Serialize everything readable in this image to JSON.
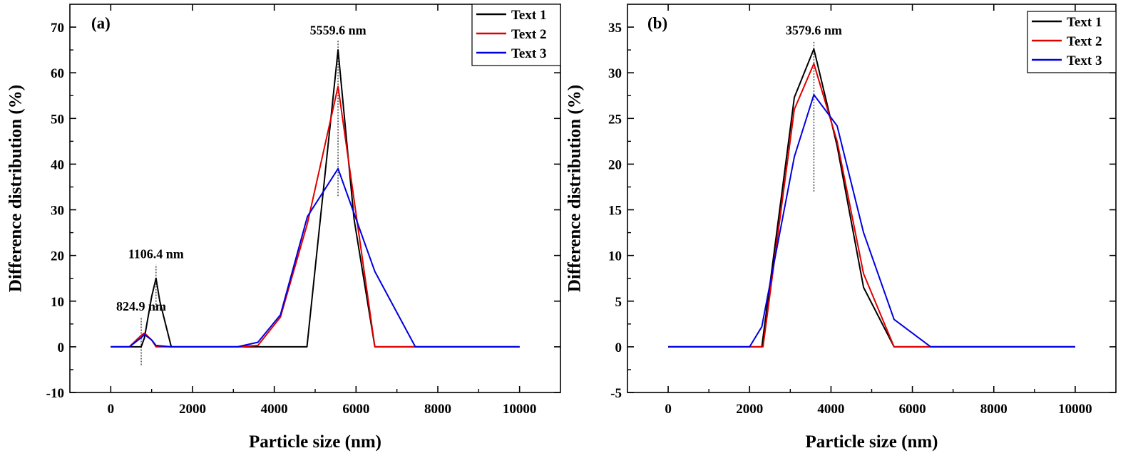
{
  "chart_data": [
    {
      "type": "line",
      "panel_label": "(a)",
      "xlabel": "Particle size (nm)",
      "ylabel": "Difference distribution (%)",
      "xlim": [
        -1000,
        11000
      ],
      "ylim": [
        -10,
        75
      ],
      "xticks": [
        0,
        2000,
        4000,
        6000,
        8000,
        10000
      ],
      "yticks": [
        -10,
        0,
        10,
        20,
        30,
        40,
        50,
        60,
        70
      ],
      "legend_position": "top-right",
      "colors": {
        "Text 1": "#000000",
        "Text 2": "#e00000",
        "Text 3": "#0000e0"
      },
      "series": [
        {
          "name": "Text 1",
          "color": "#000000",
          "x": [
            0,
            455,
            745,
            825,
            1000,
            1106.4,
            1200,
            1480,
            4800,
            5559.6,
            5950,
            6460,
            10000
          ],
          "y": [
            0,
            0,
            0,
            2.0,
            11.0,
            15.0,
            10.0,
            0,
            0,
            65.0,
            28.0,
            0,
            0
          ]
        },
        {
          "name": "Text 2",
          "color": "#e00000",
          "x": [
            0,
            455,
            745,
            824.9,
            1000,
            1106.4,
            1480,
            3100,
            3600,
            4150,
            4810,
            5559.6,
            6460,
            7450,
            10000
          ],
          "y": [
            0,
            0,
            2.5,
            3.0,
            1.5,
            0,
            0,
            0,
            0.3,
            6.5,
            27.0,
            57.0,
            0,
            0,
            0
          ]
        },
        {
          "name": "Text 3",
          "color": "#0000e0",
          "x": [
            0,
            455,
            745,
            824.9,
            1000,
            1106.4,
            1480,
            3100,
            3600,
            4150,
            4810,
            5559.6,
            6460,
            7450,
            10000
          ],
          "y": [
            0,
            0,
            2.0,
            2.7,
            1.5,
            0.3,
            0,
            0,
            1.0,
            7.0,
            28.5,
            39.0,
            16.5,
            0,
            0
          ]
        }
      ],
      "annotations": [
        {
          "text": "5559.6 nm",
          "x": 5559.6,
          "y_from": 33,
          "y_to": 67
        },
        {
          "text": "1106.4 nm",
          "x": 1106.4,
          "y_from": 8,
          "y_to": 18
        },
        {
          "text": "824.9 nm",
          "x": 745,
          "y_from": -4,
          "y_to": 6.5
        }
      ]
    },
    {
      "type": "line",
      "panel_label": "(b)",
      "xlabel": "Particle size (nm)",
      "ylabel": "Difference distribution (%)",
      "xlim": [
        -1000,
        11000
      ],
      "ylim": [
        -5,
        37.5
      ],
      "xticks": [
        0,
        2000,
        4000,
        6000,
        8000,
        10000
      ],
      "yticks": [
        -5,
        0,
        5,
        10,
        15,
        20,
        25,
        30,
        35
      ],
      "legend_position": "top-right",
      "colors": {
        "Text 1": "#000000",
        "Text 2": "#e00000",
        "Text 3": "#0000e0"
      },
      "series": [
        {
          "name": "Text 1",
          "color": "#000000",
          "x": [
            0,
            2000,
            2300,
            3100,
            3579.6,
            4150,
            4800,
            5550,
            10000
          ],
          "y": [
            0,
            0,
            0,
            27.3,
            32.6,
            22.0,
            6.5,
            0,
            0
          ]
        },
        {
          "name": "Text 2",
          "color": "#e00000",
          "x": [
            0,
            2000,
            2330,
            3100,
            3579.6,
            4150,
            4800,
            5550,
            10000
          ],
          "y": [
            0,
            0,
            0,
            26.0,
            31.0,
            22.5,
            8.0,
            0,
            0
          ]
        },
        {
          "name": "Text 3",
          "color": "#0000e0",
          "x": [
            0,
            2000,
            2300,
            3100,
            3579.6,
            4150,
            4800,
            5550,
            6450,
            10000
          ],
          "y": [
            0,
            0,
            2.2,
            20.8,
            27.6,
            24.2,
            12.5,
            3.0,
            0,
            0
          ]
        }
      ],
      "annotations": [
        {
          "text": "3579.6 nm",
          "x": 3579.6,
          "y_from": 17,
          "y_to": 33.5
        }
      ]
    }
  ]
}
